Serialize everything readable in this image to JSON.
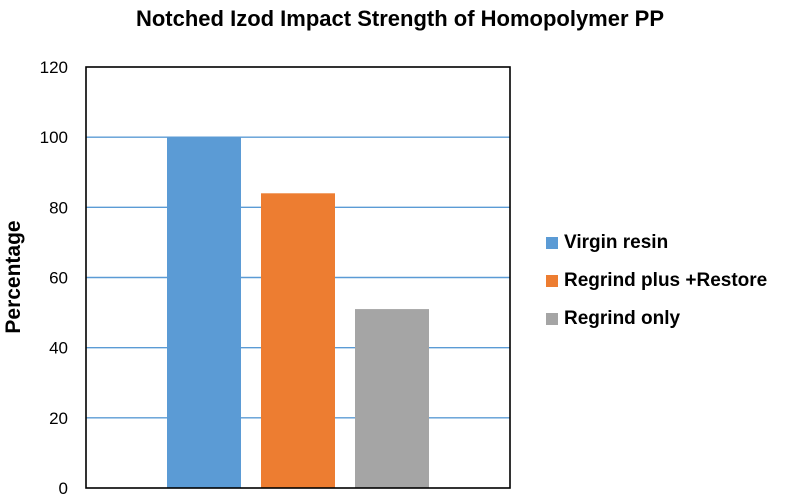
{
  "chart_data": {
    "type": "bar",
    "title": "Notched Izod Impact Strength of Homopolymer PP",
    "xlabel": "",
    "ylabel": "Percentage",
    "ylim": [
      0,
      120
    ],
    "yticks": [
      0,
      20,
      40,
      60,
      80,
      100,
      120
    ],
    "grid": true,
    "legend_position": "right",
    "series": [
      {
        "name": "Virgin resin",
        "values": [
          100
        ],
        "color": "#5b9bd5"
      },
      {
        "name": "Regrind plus +Restore",
        "values": [
          84
        ],
        "color": "#ed7d31"
      },
      {
        "name": "Regrind only",
        "values": [
          51
        ],
        "color": "#a5a5a5"
      }
    ]
  },
  "style": {
    "gridline_color": "#5b9bd5",
    "frame_color": "#000000"
  }
}
